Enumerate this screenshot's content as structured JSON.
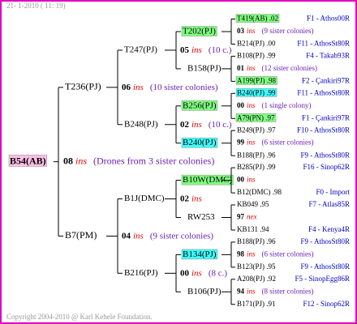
{
  "header": {
    "timestamp": "21- 1-2010 ( 11: 19)"
  },
  "footer": {
    "copyright": "Copyright 2004-2010 @ Karl Kehele Foundation."
  },
  "root": {
    "label": "B54(AB)",
    "color": "#ffc0e8",
    "count": "08",
    "mark": "ins",
    "note": "(Drones from 3 sister colonies)"
  },
  "gen1": [
    {
      "label": "T236(PJ)",
      "count": "06",
      "mark": "ins",
      "note": "(10 sister colonies)"
    },
    {
      "label": "B7(PM)",
      "count": "04",
      "mark": "ins",
      "note": "(9 sister colonies)"
    }
  ],
  "gen2": [
    {
      "label": "T247(PJ)",
      "count": "05",
      "mark": "ins",
      "note": "(10 c.)"
    },
    {
      "label": "B248(PJ)",
      "count": "02",
      "mark": "ins",
      "note": "(10 c.)"
    },
    {
      "label": "B1J(DMC)",
      "count": "02",
      "mark": "ins"
    },
    {
      "label": "B216(PJ)",
      "count": "00",
      "mark": "ins",
      "note": "(8 c.)"
    }
  ],
  "gen3": [
    {
      "label": "T202(PJ)",
      "color": "#80ff80",
      "count": "03",
      "mark": "ins",
      "note": "(9 sister colonies)",
      "dam": {
        "label": "T419(AB) .02",
        "color": "#80ff80",
        "line": "F1 - Athos00R"
      },
      "sire": {
        "label": "B214(PJ) .00",
        "line": "F11 - AthosSt80R"
      }
    },
    {
      "label": "B158(PJ)",
      "count": "01",
      "mark": "ins",
      "note": "(12 sister colonies)",
      "dam": {
        "label": "B108(PJ) .99",
        "line": "F4 - Takab93R"
      },
      "sire": {
        "label": "A199(PJ) .98",
        "color": "#80ff80",
        "line": "F2 - Çankiri97R"
      }
    },
    {
      "label": "B256(PJ)",
      "color": "#80ff80",
      "count": "00",
      "mark": "ins",
      "note": "(1 single colony)",
      "dam": {
        "label": "B240(PJ) .99",
        "color": "#40ffff",
        "line": "F11 - AthosSt80R"
      },
      "sire": {
        "label": "A79(PN) .97",
        "color": "#80ff80",
        "line": "F1 - Çankiri97R"
      }
    },
    {
      "label": "B240(PJ)",
      "color": "#40ffff",
      "count": "99",
      "mark": "ins",
      "note": "(6 sister colonies)",
      "dam": {
        "label": "B249(PJ) .97",
        "line": "F10 - AthosSt80R"
      },
      "sire": {
        "label": "B188(PJ) .96",
        "line": "F9 - AthosSt80R"
      }
    },
    {
      "label": "B10W(DMC)",
      "color": "#80ff80",
      "count": "00",
      "mark": "ins",
      "dam": {
        "label": "B285(PJ) .99",
        "line": "F16 - Sinop62R"
      },
      "sire": {
        "label": "B12(DMC) .98",
        "line": "F0 - Import"
      }
    },
    {
      "label": "RW253",
      "count": "97",
      "mark": "nex",
      "dam": {
        "label": "KB049 .95",
        "line": "F7 - Atlas85R"
      },
      "sire": {
        "label": "KB131 .94",
        "line": "F4 - Kenya4R"
      }
    },
    {
      "label": "B134(PJ)",
      "color": "#40ffff",
      "count": "98",
      "mark": "ins",
      "note": "(6 sister colonies)",
      "dam": {
        "label": "B188(PJ) .96",
        "line": "F9 - AthosSt80R"
      },
      "sire": {
        "label": "B123(PJ) .95",
        "line": "F9 - AthosSt80R"
      }
    },
    {
      "label": "B106(PJ)",
      "count": "94",
      "mark": "ins",
      "note": "(8 sister colonies)",
      "dam": {
        "label": "A208(PJ) .92",
        "line": "F5 - SinopEgg86R"
      },
      "sire": {
        "label": "B171(PJ) .91",
        "line": "F12 - Sinop62R"
      }
    }
  ]
}
